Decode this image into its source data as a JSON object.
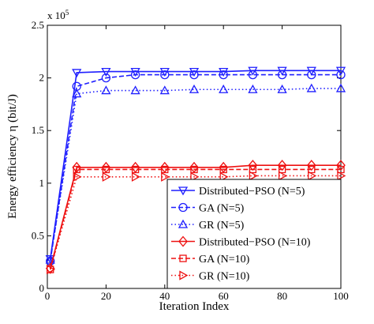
{
  "chart_data": {
    "type": "line",
    "title": "",
    "xlabel": "Iteration Index",
    "ylabel": "Energy efficiency  η  (bit/J)",
    "y_multiplier_label": "x 10",
    "y_multiplier_exponent": "5",
    "xlim": [
      0,
      100
    ],
    "ylim": [
      0,
      250000
    ],
    "xticks": [
      0,
      20,
      40,
      60,
      80,
      100
    ],
    "yticks": [
      0,
      50000,
      100000,
      150000,
      200000,
      250000
    ],
    "xtick_labels": [
      "0",
      "20",
      "40",
      "60",
      "80",
      "100"
    ],
    "ytick_labels": [
      "0",
      "0.5",
      "1",
      "1.5",
      "2",
      "2.5"
    ],
    "grid": false,
    "legend_position": "bottom-right",
    "x": [
      1,
      10,
      20,
      30,
      40,
      50,
      60,
      70,
      80,
      90,
      100
    ],
    "series": [
      {
        "name": "Distributed−PSO (N=5)",
        "color": "#1f1fff",
        "dash": "solid",
        "marker": "triangle-down",
        "values": [
          28000,
          205000,
          206000,
          206000,
          206000,
          206000,
          206000,
          207000,
          207000,
          207000,
          207000
        ]
      },
      {
        "name": "GA (N=5)",
        "color": "#1f1fff",
        "dash": "dashed",
        "marker": "circle",
        "values": [
          26000,
          192000,
          200000,
          203000,
          203000,
          203000,
          203000,
          203000,
          203000,
          203000,
          203000
        ]
      },
      {
        "name": "GR (N=5)",
        "color": "#1f1fff",
        "dash": "dotted",
        "marker": "triangle-up",
        "values": [
          27000,
          185000,
          188000,
          188000,
          188000,
          189000,
          189000,
          189000,
          189000,
          190000,
          190000
        ]
      },
      {
        "name": "Distributed−PSO (N=10)",
        "color": "#ee1111",
        "dash": "solid",
        "marker": "diamond",
        "values": [
          19000,
          115000,
          115000,
          115000,
          115000,
          115000,
          115000,
          117000,
          117000,
          117000,
          117000
        ]
      },
      {
        "name": "GA (N=10)",
        "color": "#ee1111",
        "dash": "dashed",
        "marker": "square",
        "values": [
          18000,
          113000,
          113000,
          113000,
          113000,
          113000,
          113000,
          113000,
          113000,
          113000,
          113000
        ]
      },
      {
        "name": "GR (N=10)",
        "color": "#ee1111",
        "dash": "dotted",
        "marker": "triangle-right",
        "values": [
          18000,
          106000,
          106000,
          106000,
          106000,
          106000,
          106000,
          107000,
          107000,
          107000,
          107000
        ]
      }
    ]
  }
}
